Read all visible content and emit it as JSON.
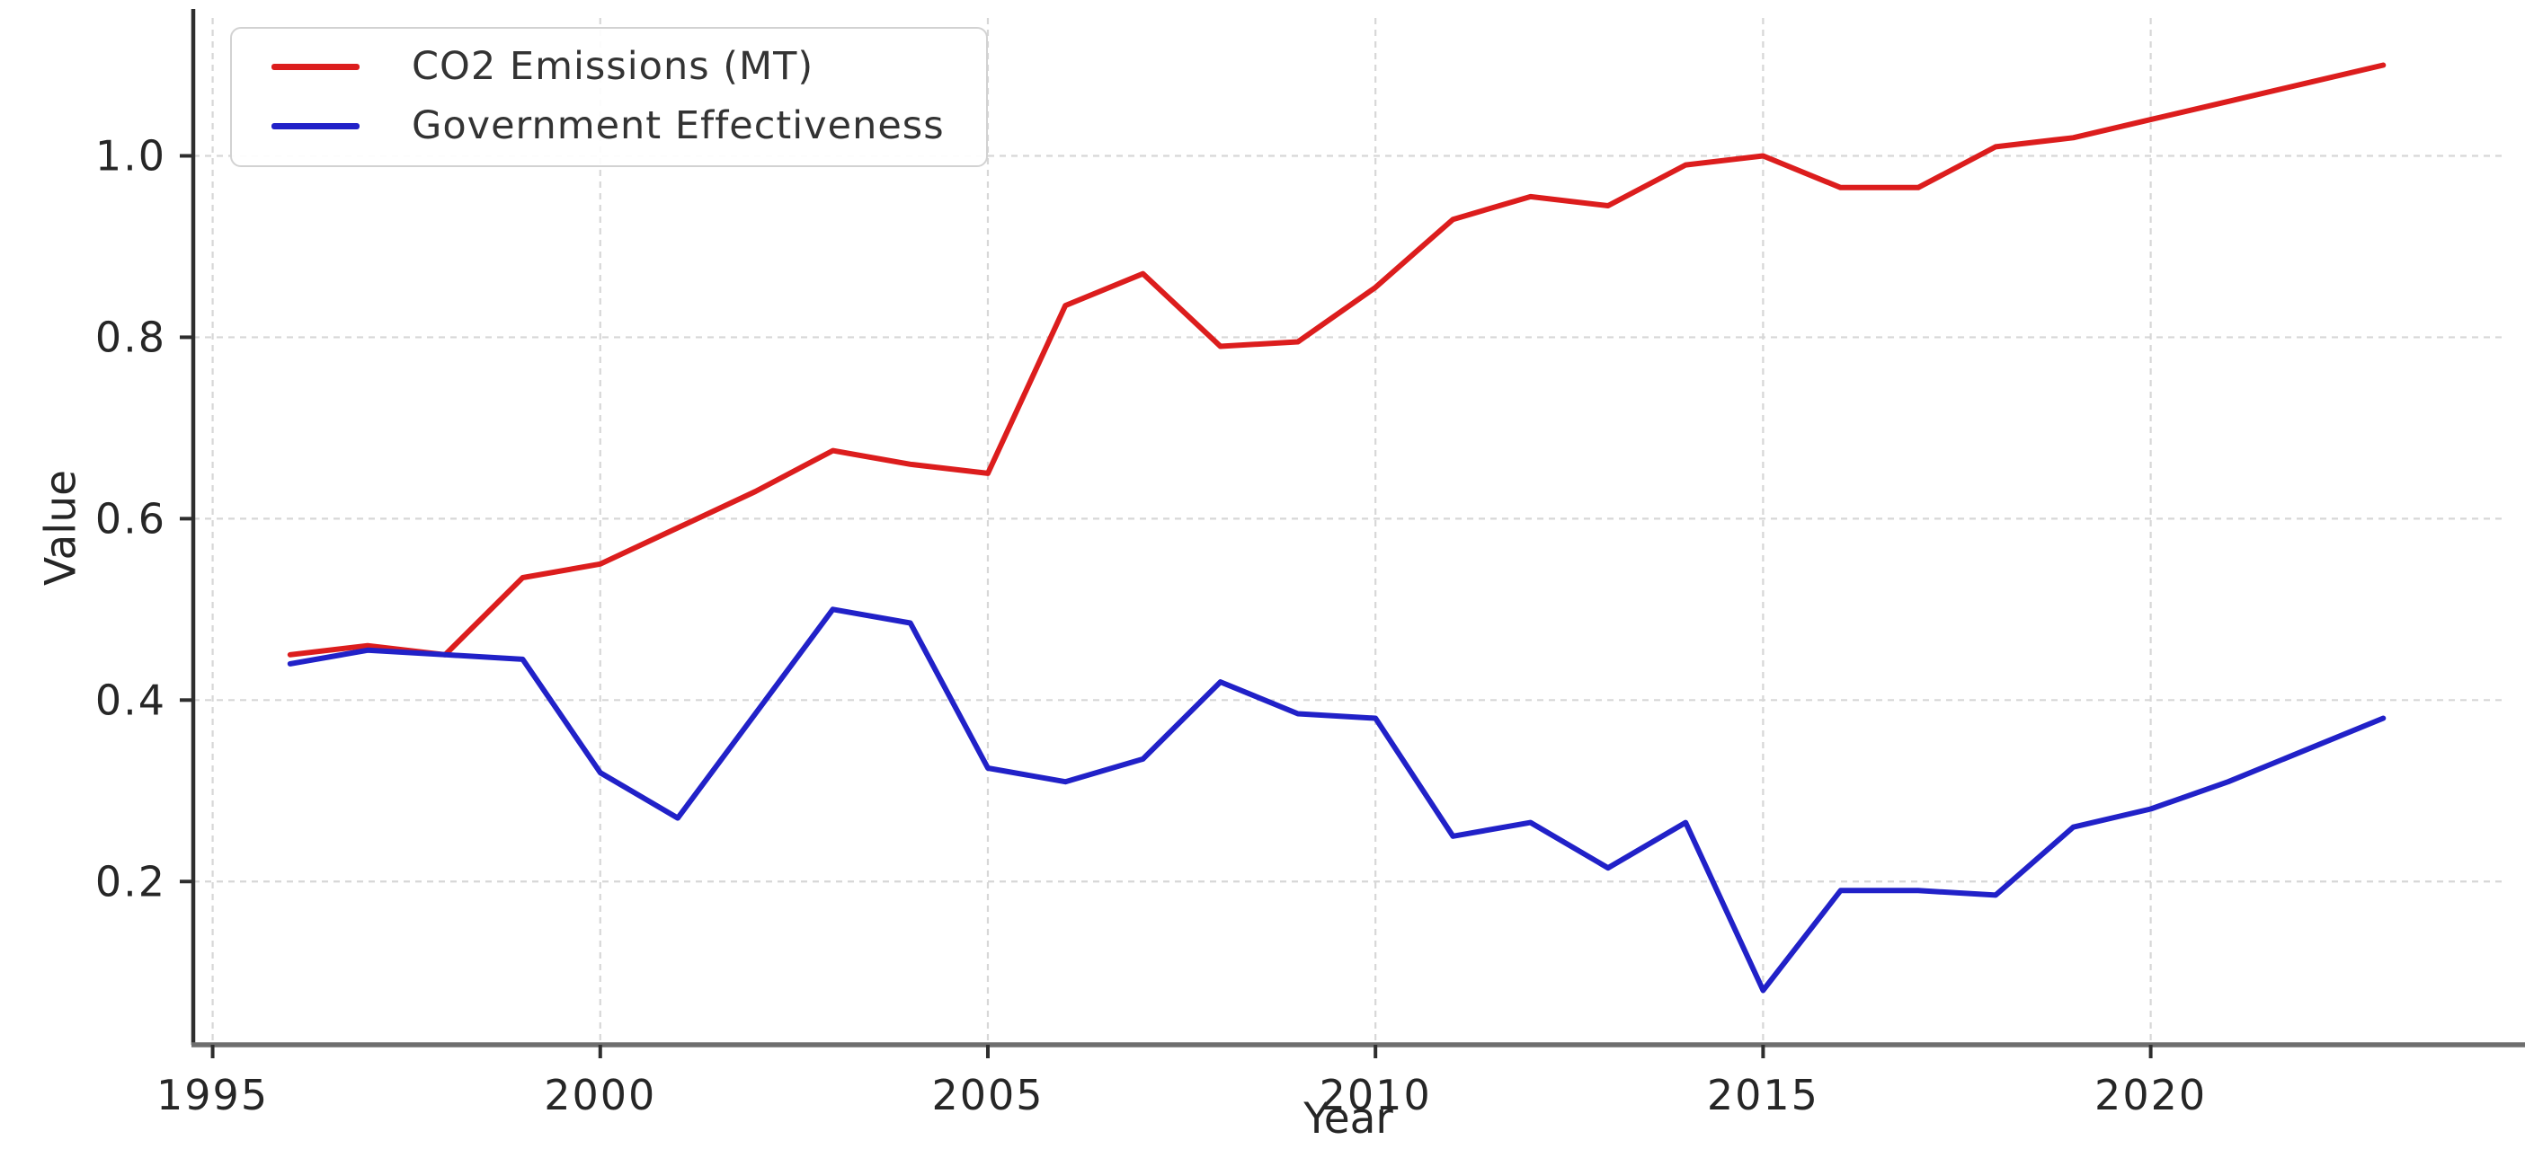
{
  "chart_data": {
    "type": "line",
    "title": "",
    "xlabel": "Year",
    "ylabel": "Value",
    "x": [
      1996,
      1997,
      1998,
      1999,
      2000,
      2001,
      2002,
      2003,
      2004,
      2005,
      2006,
      2007,
      2008,
      2009,
      2010,
      2011,
      2012,
      2013,
      2014,
      2015,
      2016,
      2017,
      2018,
      2019,
      2020,
      2021,
      2022,
      2023
    ],
    "series": [
      {
        "name": "CO2 Emissions (MT)",
        "color": "#dc1d1d",
        "values": [
          0.45,
          0.46,
          0.45,
          0.535,
          0.55,
          0.59,
          0.63,
          0.675,
          0.66,
          0.65,
          0.835,
          0.87,
          0.79,
          0.795,
          0.855,
          0.93,
          0.955,
          0.945,
          0.99,
          1.0,
          0.965,
          0.965,
          1.01,
          1.02,
          1.04,
          1.06,
          1.08,
          1.1
        ]
      },
      {
        "name": "Government Effectiveness",
        "color": "#2121c8",
        "values": [
          0.44,
          0.455,
          0.45,
          0.445,
          0.32,
          0.27,
          0.385,
          0.5,
          0.485,
          0.325,
          0.31,
          0.335,
          0.42,
          0.385,
          0.38,
          0.25,
          0.265,
          0.215,
          0.265,
          0.08,
          0.19,
          0.19,
          0.185,
          0.26,
          0.28,
          0.31,
          0.345,
          0.38
        ]
      }
    ],
    "xlim": [
      1994.75,
      2024.55
    ],
    "ylim": [
      0.02,
      1.152
    ],
    "xticks": [
      1995,
      2000,
      2005,
      2010,
      2015,
      2020
    ],
    "yticks": [
      0.2,
      0.4,
      0.6,
      0.8,
      1.0
    ],
    "grid": true,
    "gridline_color": "#d7d7d7",
    "spine_color": "#4a4a4a",
    "tick_label_color": "#262626",
    "legend_position": "upper left"
  }
}
